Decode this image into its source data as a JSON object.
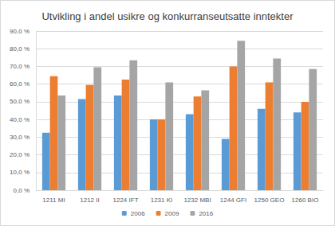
{
  "chart_data": {
    "type": "bar",
    "title": "Utvikling i andel usikre og konkurranseutsatte inntekter",
    "categories": [
      "1211 MI",
      "1212 II",
      "1224 IFT",
      "1231 KI",
      "1232 MBI",
      "1244 GFI",
      "1250 GEO",
      "1260 BIO"
    ],
    "series": [
      {
        "name": "2006",
        "color": "#5b9bd5",
        "values": [
          32.5,
          51.5,
          53.5,
          40,
          43,
          29,
          46,
          44
        ]
      },
      {
        "name": "2009",
        "color": "#ed7d31",
        "values": [
          64.5,
          59.5,
          62.5,
          40,
          53,
          70,
          61,
          50
        ]
      },
      {
        "name": "2016",
        "color": "#a5a5a5",
        "values": [
          53.5,
          69.5,
          73.5,
          61,
          56.5,
          84.5,
          74.5,
          68.5
        ]
      }
    ],
    "ylim": [
      0,
      90
    ],
    "yticks": [
      {
        "value": 0,
        "label": "0,0 %"
      },
      {
        "value": 10,
        "label": "10,0 %"
      },
      {
        "value": 20,
        "label": "20,0 %"
      },
      {
        "value": 30,
        "label": "30,0 %"
      },
      {
        "value": 40,
        "label": "40,0 %"
      },
      {
        "value": 50,
        "label": "50,0 %"
      },
      {
        "value": 60,
        "label": "60,0 %"
      },
      {
        "value": 70,
        "label": "70,0 %"
      },
      {
        "value": 80,
        "label": "80,0 %"
      },
      {
        "value": 90,
        "label": "90,0 %"
      }
    ],
    "grid": true,
    "legend": "bottom"
  }
}
